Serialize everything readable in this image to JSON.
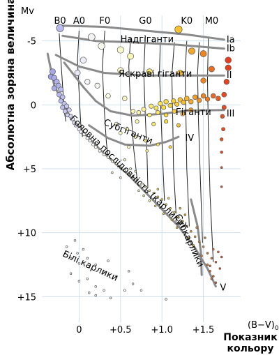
{
  "chart_data": {
    "type": "scatter",
    "title": "",
    "ylabel": "Абсолютна зоряна величина",
    "ylabel_symbol": "Mv",
    "xlabel": "Показник кольору",
    "xlabel_line1": "Показник",
    "xlabel_line2": "кольору",
    "xlabel_symbol": "(B−V)",
    "xlabel_symbol_sub": "0",
    "xlim": [
      -0.45,
      1.95
    ],
    "ylim": [
      -7,
      17
    ],
    "x_ticks": [
      {
        "value": 0,
        "label": "0"
      },
      {
        "value": 0.5,
        "label": "+0.5"
      },
      {
        "value": 1.0,
        "label": "+1.0"
      },
      {
        "value": 1.5,
        "label": "+1.5"
      }
    ],
    "y_ticks": [
      {
        "value": -5,
        "label": "-5"
      },
      {
        "value": 0,
        "label": "0"
      },
      {
        "value": 5,
        "label": "+5"
      },
      {
        "value": 10,
        "label": "+10"
      },
      {
        "value": 15,
        "label": "+15"
      }
    ],
    "grid": true,
    "spectral_classes": [
      {
        "label": "B0",
        "x": -0.23
      },
      {
        "label": "A0",
        "x": 0.0
      },
      {
        "label": "F0",
        "x": 0.31
      },
      {
        "label": "G0",
        "x": 0.8
      },
      {
        "label": "K0",
        "x": 1.3
      },
      {
        "label": "M0",
        "x": 1.6
      }
    ],
    "luminosity_classes": [
      {
        "label": "Ia",
        "x": 1.78,
        "y": -5.1
      },
      {
        "label": "Ib",
        "x": 1.78,
        "y": -4.4
      },
      {
        "label": "II",
        "x": 1.78,
        "y": -2.3
      },
      {
        "label": "III",
        "x": 1.78,
        "y": 0.7
      },
      {
        "label": "IV",
        "x": 1.28,
        "y": 2.6
      },
      {
        "label": "V",
        "x": 1.7,
        "y": 14.3
      }
    ],
    "region_labels": [
      {
        "label": "Надгіганти",
        "x": 0.82,
        "y": -4.9,
        "angle": 0
      },
      {
        "label": "Яскраві гіганти",
        "x": 0.92,
        "y": -2.2,
        "angle": 0
      },
      {
        "label": "Гіганти",
        "x": 1.38,
        "y": 0.8,
        "angle": 0
      },
      {
        "label": "Субгіганти",
        "x": 0.58,
        "y": 2.3,
        "angle": 22
      },
      {
        "label": "Головна послідовність (карлики)",
        "x": 0.57,
        "y": 5.4,
        "angle": 44
      },
      {
        "label": "Субкарлики",
        "x": 1.3,
        "y": 10.7,
        "angle": 65
      },
      {
        "label": "Білі карлики",
        "x": 0.12,
        "y": 12.8,
        "angle": 25
      }
    ],
    "series": [
      {
        "points": [
          [
            -0.32,
            -2.6
          ],
          [
            -0.34,
            -2.2
          ],
          [
            -0.3,
            -2.1
          ],
          [
            -0.27,
            -1.8
          ],
          [
            -0.25,
            -1.5
          ],
          [
            -0.3,
            -1.3
          ],
          [
            -0.22,
            -1.2
          ],
          [
            -0.24,
            -0.8
          ],
          [
            -0.2,
            -0.6
          ],
          [
            -0.22,
            -0.3
          ],
          [
            -0.18,
            -0.1
          ],
          [
            -0.2,
            0.2
          ],
          [
            -0.15,
            0.1
          ],
          [
            -0.17,
            0.5
          ],
          [
            -0.12,
            0.4
          ],
          [
            -0.14,
            0.8
          ],
          [
            -0.1,
            0.9
          ],
          [
            -0.08,
            1.1
          ],
          [
            -0.06,
            1.4
          ],
          [
            -0.04,
            1.6
          ],
          [
            0.0,
            1.9
          ],
          [
            0.02,
            2.1
          ],
          [
            0.06,
            2.3
          ],
          [
            0.1,
            2.6
          ],
          [
            0.13,
            2.8
          ],
          [
            0.17,
            3.1
          ],
          [
            0.2,
            3.3
          ],
          [
            0.25,
            3.6
          ],
          [
            0.3,
            3.9
          ],
          [
            0.35,
            4.1
          ],
          [
            0.4,
            4.4
          ],
          [
            0.45,
            4.6
          ],
          [
            0.5,
            4.9
          ],
          [
            0.55,
            5.1
          ],
          [
            0.6,
            5.4
          ],
          [
            0.65,
            5.6
          ],
          [
            0.7,
            5.9
          ],
          [
            0.75,
            6.2
          ],
          [
            0.8,
            6.4
          ],
          [
            0.85,
            6.7
          ],
          [
            0.9,
            6.9
          ],
          [
            0.95,
            7.2
          ],
          [
            1.0,
            7.4
          ],
          [
            1.05,
            7.8
          ],
          [
            1.1,
            8.1
          ],
          [
            1.15,
            8.4
          ],
          [
            1.2,
            8.8
          ],
          [
            1.25,
            9.1
          ],
          [
            1.3,
            9.5
          ],
          [
            1.35,
            9.9
          ],
          [
            1.4,
            10.3
          ],
          [
            1.45,
            10.7
          ],
          [
            1.5,
            11.1
          ],
          [
            1.55,
            11.6
          ],
          [
            1.6,
            12.0
          ],
          [
            0.4,
            5.3
          ],
          [
            0.5,
            5.7
          ],
          [
            0.62,
            5.0
          ],
          [
            0.72,
            6.7
          ],
          [
            0.85,
            7.5
          ],
          [
            0.95,
            6.6
          ],
          [
            1.02,
            8.5
          ],
          [
            1.12,
            9.0
          ],
          [
            1.22,
            8.1
          ],
          [
            1.32,
            10.4
          ],
          [
            1.42,
            9.6
          ],
          [
            1.48,
            11.8
          ],
          [
            1.58,
            12.6
          ],
          [
            1.62,
            11.3
          ],
          [
            0.55,
            4.3
          ],
          [
            0.68,
            5.2
          ],
          [
            0.78,
            7.1
          ],
          [
            0.92,
            7.9
          ],
          [
            1.08,
            7.3
          ],
          [
            1.18,
            9.6
          ],
          [
            1.28,
            8.6
          ],
          [
            1.38,
            11.0
          ],
          [
            1.52,
            10.4
          ],
          [
            1.58,
            13.0
          ],
          [
            1.62,
            13.4
          ],
          [
            1.55,
            12.5
          ]
        ]
      },
      {
        "points": [
          [
            0.78,
            0.35
          ],
          [
            0.87,
            0.1
          ],
          [
            0.93,
            0.25
          ],
          [
            0.98,
            -0.1
          ],
          [
            1.02,
            0.2
          ],
          [
            1.05,
            -0.25
          ],
          [
            1.1,
            0.05
          ],
          [
            1.14,
            -0.3
          ],
          [
            1.18,
            -0.05
          ],
          [
            1.22,
            -0.4
          ],
          [
            1.26,
            -0.2
          ],
          [
            1.3,
            -0.5
          ],
          [
            1.35,
            -0.25
          ],
          [
            1.4,
            -0.6
          ],
          [
            1.45,
            -0.35
          ],
          [
            1.5,
            -0.7
          ],
          [
            1.55,
            -0.45
          ],
          [
            1.62,
            -0.7
          ],
          [
            1.68,
            -0.5
          ],
          [
            0.65,
            0.5
          ],
          [
            0.72,
            0.6
          ],
          [
            0.85,
            0.8
          ],
          [
            0.95,
            0.6
          ],
          [
            1.05,
            0.8
          ],
          [
            1.15,
            0.5
          ],
          [
            1.25,
            0.7
          ],
          [
            1.35,
            0.4
          ],
          [
            0.7,
            1.3
          ],
          [
            0.9,
            1.5
          ],
          [
            1.05,
            1.3
          ],
          [
            1.2,
            1.6
          ],
          [
            0.45,
            1.5
          ],
          [
            0.5,
            2.2
          ],
          [
            0.58,
            1.9
          ],
          [
            0.68,
            2.5
          ],
          [
            0.8,
            2.8
          ],
          [
            0.95,
            3.1
          ],
          [
            1.1,
            3.3
          ],
          [
            0.6,
            3.3
          ],
          [
            0.82,
            3.6
          ]
        ]
      },
      {
        "points": [
          [
            1.8,
            -3.5
          ],
          [
            1.8,
            -2.9
          ],
          [
            1.78,
            -1.8
          ],
          [
            1.75,
            -0.8
          ],
          [
            1.75,
            0.2
          ],
          [
            1.73,
            0.9
          ],
          [
            1.74,
            1.9
          ],
          [
            1.72,
            2.7
          ],
          [
            1.72,
            3.7
          ],
          [
            1.72,
            4.9
          ],
          [
            1.72,
            6.4
          ],
          [
            1.68,
            11.5
          ],
          [
            1.72,
            11.9
          ],
          [
            1.65,
            12.3
          ],
          [
            1.7,
            12.8
          ],
          [
            1.6,
            13.6
          ],
          [
            1.65,
            13.9
          ]
        ]
      },
      {
        "points": [
          [
            -0.23,
            -6.0
          ],
          [
            0.15,
            -5.3
          ],
          [
            0.27,
            -4.6
          ],
          [
            0.5,
            -4.3
          ],
          [
            0.62,
            -3.8
          ],
          [
            1.2,
            -5.9
          ],
          [
            1.36,
            -4.2
          ],
          [
            1.5,
            -4.0
          ],
          [
            1.6,
            -2.8
          ],
          [
            1.22,
            -2.5
          ],
          [
            0.05,
            -3.5
          ],
          [
            -0.02,
            -2.5
          ],
          [
            0.1,
            -1.8
          ],
          [
            0.22,
            -1.5
          ],
          [
            0.5,
            -2.7
          ],
          [
            0.85,
            -2.6
          ],
          [
            1.5,
            -1.9
          ],
          [
            0.35,
            -0.7
          ],
          [
            0.55,
            -0.5
          ]
        ]
      },
      {
        "points": [
          [
            -0.15,
            11.1
          ],
          [
            -0.05,
            10.6
          ],
          [
            0.05,
            11.3
          ],
          [
            -0.1,
            12.0
          ],
          [
            0.0,
            12.4
          ],
          [
            0.1,
            12.0
          ],
          [
            0.2,
            12.5
          ],
          [
            0.3,
            13.0
          ],
          [
            0.35,
            12.2
          ],
          [
            -0.1,
            13.2
          ],
          [
            0.0,
            13.8
          ],
          [
            0.1,
            13.6
          ],
          [
            0.2,
            14.2
          ],
          [
            0.3,
            14.5
          ],
          [
            0.45,
            13.4
          ],
          [
            0.55,
            14.5
          ],
          [
            0.65,
            14.0
          ],
          [
            0.75,
            14.5
          ],
          [
            0.2,
            14.9
          ],
          [
            0.38,
            15.1
          ],
          [
            1.05,
            15.2
          ],
          [
            -0.02,
            11.6
          ],
          [
            0.6,
            13.0
          ],
          [
            0.12,
            14.7
          ]
        ]
      }
    ]
  }
}
